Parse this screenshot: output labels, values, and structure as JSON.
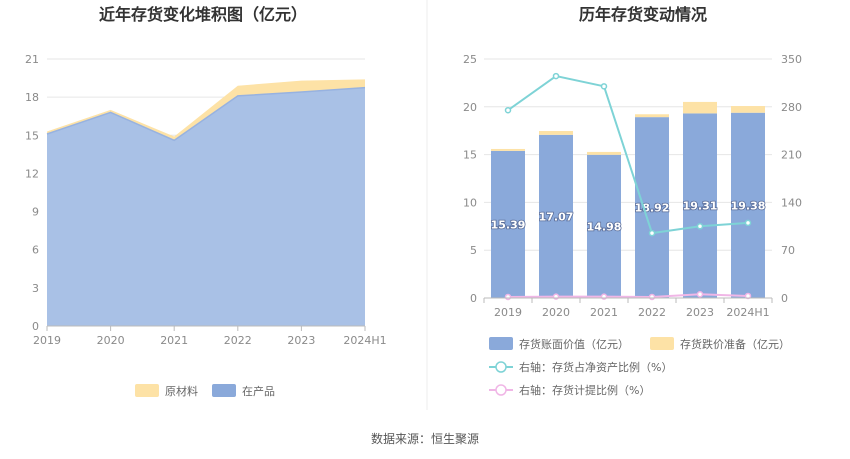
{
  "left_title": "近年存货变化堆积图（亿元）",
  "right_title": "历年存货变动情况",
  "source": "数据来源：恒生聚源",
  "colors": {
    "raw": "#fde2a6",
    "product": "#a9c1e6",
    "bar": "#8aa9da",
    "bar_top": "#fde2a6",
    "line1": "#7ed3d6",
    "line2": "#f0b6e6",
    "grid": "#e6e6e6"
  },
  "chart_data": [
    {
      "type": "area",
      "title": "近年存货变化堆积图（亿元）",
      "x": [
        "2019",
        "2020",
        "2021",
        "2022",
        "2023",
        "2024H1"
      ],
      "y_ticks": [
        "0",
        "3",
        "6",
        "9",
        "12",
        "15",
        "18",
        "21"
      ],
      "ylim": [
        0,
        21
      ],
      "legend_position": "bottom",
      "series": [
        {
          "name": "在产品",
          "values": [
            15.1,
            16.8,
            14.6,
            18.1,
            18.4,
            18.75
          ]
        },
        {
          "name": "原材料",
          "values": [
            0.2,
            0.2,
            0.3,
            0.8,
            0.9,
            0.65
          ]
        }
      ]
    },
    {
      "type": "bar",
      "title": "历年存货变动情况",
      "categories": [
        "2019",
        "2020",
        "2021",
        "2022",
        "2023",
        "2024H1"
      ],
      "y_ticks_left": [
        "0",
        "5",
        "10",
        "15",
        "20",
        "25"
      ],
      "ylim_left": [
        0,
        25
      ],
      "y_ticks_right": [
        "0",
        "70",
        "140",
        "210",
        "280",
        "350"
      ],
      "ylim_right": [
        0,
        350
      ],
      "legend_position": "bottom",
      "series": [
        {
          "name": "存货账面价值（亿元）",
          "axis": "left",
          "values": [
            15.39,
            17.07,
            14.98,
            18.92,
            19.31,
            19.38
          ],
          "labels": [
            "15.39",
            "17.07",
            "14.98",
            "18.92",
            "19.31",
            "19.38"
          ]
        },
        {
          "name": "存货跌价准备（亿元）",
          "axis": "left",
          "values": [
            0.2,
            0.4,
            0.3,
            0.3,
            1.2,
            0.7
          ]
        },
        {
          "name": "右轴：存货占净资产比例（%）",
          "axis": "right",
          "type": "line",
          "values": [
            275,
            325,
            310,
            95,
            105,
            110
          ]
        },
        {
          "name": "右轴：存货计提比例（%）",
          "axis": "right",
          "type": "line",
          "values": [
            1.5,
            2.0,
            2.0,
            1.5,
            5.5,
            3.0
          ]
        }
      ]
    }
  ]
}
